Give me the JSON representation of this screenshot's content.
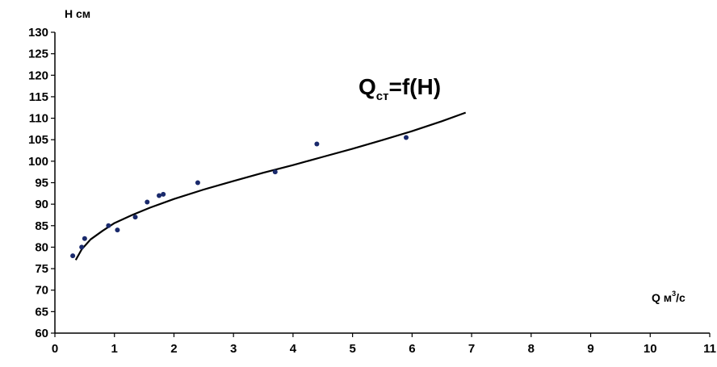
{
  "chart_data": {
    "type": "scatter",
    "x_axis": {
      "label_main": "Q м",
      "label_sup": "3",
      "label_tail": "/с",
      "min": 0,
      "max": 11,
      "ticks": [
        "0",
        "1",
        "2",
        "3",
        "4",
        "5",
        "6",
        "7",
        "8",
        "9",
        "10",
        "11"
      ]
    },
    "y_axis": {
      "label": "Н см",
      "min": 60,
      "max": 130,
      "ticks": [
        "130",
        "125",
        "120",
        "115",
        "110",
        "105",
        "100",
        "95",
        "90",
        "85",
        "80",
        "75",
        "70",
        "65",
        "60"
      ]
    },
    "annotation": {
      "main": "Q",
      "sub": "ст",
      "tail": "=f(H)"
    },
    "points": [
      {
        "x": 0.3,
        "y": 78.0,
        "color": "#1a2a6c"
      },
      {
        "x": 0.45,
        "y": 80.0,
        "color": "#1a2a6c"
      },
      {
        "x": 0.5,
        "y": 82.0,
        "color": "#1a2a6c"
      },
      {
        "x": 0.9,
        "y": 85.0,
        "color": "#1a2a6c"
      },
      {
        "x": 1.05,
        "y": 84.0,
        "color": "#1a2a6c"
      },
      {
        "x": 1.35,
        "y": 87.0,
        "color": "#1a2a6c"
      },
      {
        "x": 1.55,
        "y": 90.5,
        "color": "#1a2a6c"
      },
      {
        "x": 1.75,
        "y": 92.0,
        "color": "#1a2a6c"
      },
      {
        "x": 1.82,
        "y": 92.3,
        "color": "#1a2a6c"
      },
      {
        "x": 2.4,
        "y": 95.0,
        "color": "#1a2a6c"
      },
      {
        "x": 3.7,
        "y": 97.5,
        "color": "#1a2a6c"
      },
      {
        "x": 4.4,
        "y": 104.0,
        "color": "#1a2a6c"
      },
      {
        "x": 5.9,
        "y": 105.5,
        "color": "#1a2a6c"
      }
    ],
    "fit_curve": [
      {
        "x": 0.35,
        "y": 77.0
      },
      {
        "x": 0.45,
        "y": 79.5
      },
      {
        "x": 0.6,
        "y": 81.8
      },
      {
        "x": 0.8,
        "y": 83.8
      },
      {
        "x": 1.0,
        "y": 85.6
      },
      {
        "x": 1.3,
        "y": 87.5
      },
      {
        "x": 1.6,
        "y": 89.2
      },
      {
        "x": 2.0,
        "y": 91.2
      },
      {
        "x": 2.5,
        "y": 93.4
      },
      {
        "x": 3.0,
        "y": 95.4
      },
      {
        "x": 3.5,
        "y": 97.3
      },
      {
        "x": 4.0,
        "y": 99.1
      },
      {
        "x": 4.5,
        "y": 101.0
      },
      {
        "x": 5.0,
        "y": 102.9
      },
      {
        "x": 5.5,
        "y": 104.9
      },
      {
        "x": 6.0,
        "y": 107.0
      },
      {
        "x": 6.5,
        "y": 109.3
      },
      {
        "x": 6.9,
        "y": 111.3
      }
    ],
    "colors": {
      "axis": "#000000",
      "curve": "#000000",
      "points": "#1a2a6c"
    },
    "grid": false,
    "legend": "none"
  }
}
